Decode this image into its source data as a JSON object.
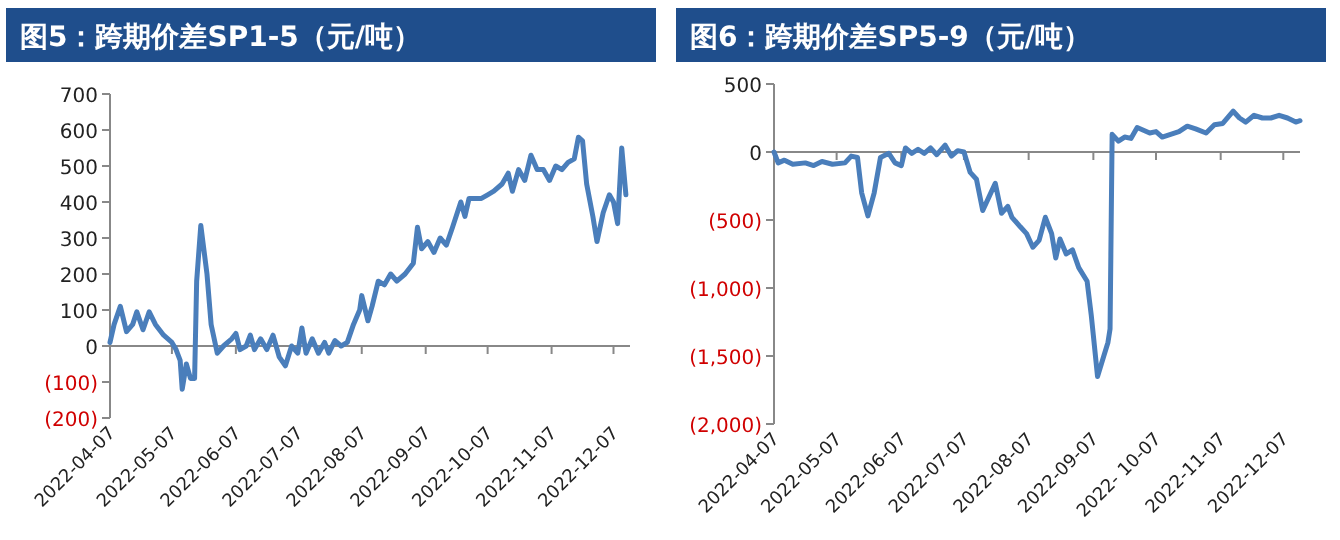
{
  "chart_data": [
    {
      "type": "line",
      "title": "图5：跨期价差SP1-5（元/吨）",
      "x": [
        "2022-04-07",
        "2022-04-09",
        "2022-04-12",
        "2022-04-15",
        "2022-04-18",
        "2022-04-20",
        "2022-04-23",
        "2022-04-26",
        "2022-04-29",
        "2022-05-03",
        "2022-05-07",
        "2022-05-09",
        "2022-05-11",
        "2022-05-12",
        "2022-05-14",
        "2022-05-16",
        "2022-05-18",
        "2022-05-19",
        "2022-05-21",
        "2022-05-24",
        "2022-05-26",
        "2022-05-29",
        "2022-06-01",
        "2022-06-05",
        "2022-06-07",
        "2022-06-09",
        "2022-06-12",
        "2022-06-14",
        "2022-06-16",
        "2022-06-19",
        "2022-06-22",
        "2022-06-25",
        "2022-06-28",
        "2022-07-01",
        "2022-07-04",
        "2022-07-07",
        "2022-07-09",
        "2022-07-11",
        "2022-07-14",
        "2022-07-17",
        "2022-07-20",
        "2022-07-22",
        "2022-07-25",
        "2022-07-28",
        "2022-07-31",
        "2022-08-03",
        "2022-08-06",
        "2022-08-07",
        "2022-08-10",
        "2022-08-12",
        "2022-08-15",
        "2022-08-18",
        "2022-08-21",
        "2022-08-24",
        "2022-08-28",
        "2022-09-01",
        "2022-09-03",
        "2022-09-05",
        "2022-09-08",
        "2022-09-11",
        "2022-09-14",
        "2022-09-17",
        "2022-09-20",
        "2022-09-24",
        "2022-09-26",
        "2022-09-28",
        "2022-10-04",
        "2022-10-07",
        "2022-10-10",
        "2022-10-14",
        "2022-10-17",
        "2022-10-19",
        "2022-10-22",
        "2022-10-25",
        "2022-10-28",
        "2022-10-31",
        "2022-11-03",
        "2022-11-06",
        "2022-11-09",
        "2022-11-12",
        "2022-11-15",
        "2022-11-18",
        "2022-11-20",
        "2022-11-22",
        "2022-11-24",
        "2022-11-27",
        "2022-11-29",
        "2022-12-02",
        "2022-12-05",
        "2022-12-07",
        "2022-12-09",
        "2022-12-11",
        "2022-12-13"
      ],
      "series": [
        {
          "color": "#4a7ebb",
          "values": [
            10,
            60,
            110,
            40,
            60,
            95,
            45,
            95,
            60,
            30,
            10,
            -10,
            -40,
            -120,
            -50,
            -90,
            -90,
            180,
            335,
            200,
            60,
            -20,
            0,
            20,
            35,
            -10,
            0,
            30,
            -10,
            20,
            -10,
            30,
            -30,
            -55,
            0,
            -20,
            50,
            -20,
            20,
            -20,
            10,
            -20,
            15,
            0,
            10,
            60,
            100,
            140,
            70,
            110,
            180,
            170,
            200,
            180,
            200,
            230,
            330,
            270,
            290,
            260,
            300,
            280,
            330,
            400,
            360,
            410,
            410,
            420,
            430,
            450,
            480,
            430,
            490,
            460,
            530,
            490,
            490,
            460,
            500,
            490,
            510,
            520,
            580,
            570,
            450,
            360,
            290,
            370,
            420,
            400,
            340,
            550,
            420
          ]
        }
      ],
      "xlim": [
        "2022-04-07",
        "2022-12-15"
      ],
      "xticks": [
        "2022-04-07",
        "2022-05-07",
        "2022-06-07",
        "2022-07-07",
        "2022-08-07",
        "2022-09-07",
        "2022-10-07",
        "2022-11-07",
        "2022-12-07"
      ],
      "ylim": [
        -200,
        700
      ],
      "yticks": [
        {
          "value": -200,
          "label": "(200)"
        },
        {
          "value": -100,
          "label": "(100)"
        },
        0,
        100,
        200,
        300,
        400,
        500,
        600,
        700
      ],
      "marker": "none",
      "line_style": "solid"
    },
    {
      "type": "line",
      "title": "图6：跨期价差SP5-9（元/吨）",
      "x": [
        "2022-04-07",
        "2022-04-09",
        "2022-04-12",
        "2022-04-16",
        "2022-04-22",
        "2022-04-26",
        "2022-04-30",
        "2022-05-05",
        "2022-05-11",
        "2022-05-14",
        "2022-05-17",
        "2022-05-19",
        "2022-05-22",
        "2022-05-25",
        "2022-05-28",
        "2022-06-01",
        "2022-06-04",
        "2022-06-07",
        "2022-06-09",
        "2022-06-12",
        "2022-06-15",
        "2022-06-18",
        "2022-06-21",
        "2022-06-24",
        "2022-06-28",
        "2022-07-01",
        "2022-07-04",
        "2022-07-07",
        "2022-07-10",
        "2022-07-13",
        "2022-07-16",
        "2022-07-19",
        "2022-07-22",
        "2022-07-25",
        "2022-07-28",
        "2022-07-30",
        "2022-08-03",
        "2022-08-06",
        "2022-08-09",
        "2022-08-12",
        "2022-08-15",
        "2022-08-18",
        "2022-08-20",
        "2022-08-22",
        "2022-08-25",
        "2022-08-28",
        "2022-08-31",
        "2022-09-04",
        "2022-09-06",
        "2022-09-07",
        "2022-09-09",
        "2022-09-12",
        "2022-09-14",
        "2022-09-15",
        "2022-09-16",
        "2022-09-19",
        "2022-09-22",
        "2022-09-25",
        "2022-09-28",
        "2022-10-04",
        "2022-10-07",
        "2022-10-10",
        "2022-10-14",
        "2022-10-18",
        "2022-10-22",
        "2022-10-26",
        "2022-10-31",
        "2022-11-04",
        "2022-11-08",
        "2022-11-13",
        "2022-11-16",
        "2022-11-19",
        "2022-11-23",
        "2022-11-27",
        "2022-12-01",
        "2022-12-05",
        "2022-12-09",
        "2022-12-13",
        "2022-12-15"
      ],
      "series": [
        {
          "color": "#4a7ebb",
          "values": [
            0,
            -80,
            -60,
            -90,
            -80,
            -100,
            -70,
            -90,
            -80,
            -30,
            -40,
            -300,
            -470,
            -300,
            -40,
            -10,
            -80,
            -100,
            30,
            -10,
            20,
            -10,
            30,
            -20,
            50,
            -30,
            10,
            0,
            -150,
            -200,
            -430,
            -330,
            -230,
            -450,
            -400,
            -480,
            -550,
            -600,
            -700,
            -650,
            -480,
            -600,
            -780,
            -640,
            -750,
            -720,
            -850,
            -950,
            -1200,
            -1350,
            -1650,
            -1500,
            -1400,
            -1300,
            130,
            80,
            110,
            100,
            180,
            140,
            150,
            110,
            130,
            150,
            190,
            170,
            140,
            200,
            210,
            300,
            250,
            220,
            270,
            250,
            250,
            270,
            250,
            220,
            230
          ]
        }
      ],
      "xlim": [
        "2022-04-07",
        "2022-12-15"
      ],
      "xticks": [
        "2022-04-07",
        "2022-05-07",
        "2022-06-07",
        "2022-07-07",
        "2022-08-07",
        "2022-09-07",
        {
          "value": "2022-10-07",
          "label": "2022- 10-07"
        },
        "2022-11-07",
        "2022-12-07"
      ],
      "ylim": [
        -2000,
        500
      ],
      "yticks": [
        {
          "value": -2000,
          "label": "(2,000)"
        },
        {
          "value": -1500,
          "label": "(1,500)"
        },
        {
          "value": -1000,
          "label": "(1,000)"
        },
        {
          "value": -500,
          "label": "(500)"
        },
        0,
        500
      ],
      "marker": "none",
      "line_style": "solid"
    }
  ]
}
